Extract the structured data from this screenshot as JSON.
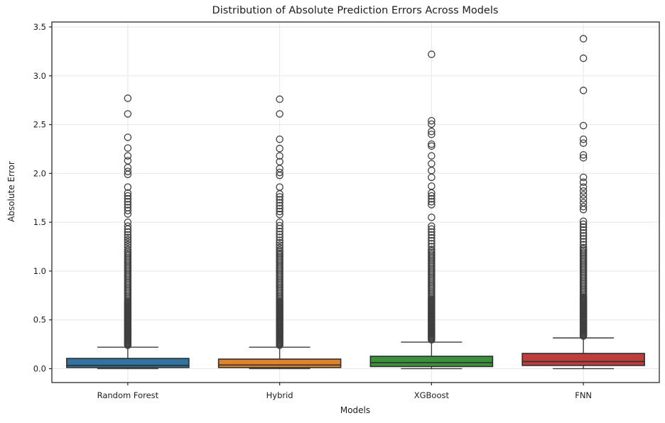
{
  "chart_data": {
    "type": "boxplot",
    "title": "Distribution of Absolute Prediction Errors Across Models",
    "xlabel": "Models",
    "ylabel": "Absolute Error",
    "categories": [
      "Random Forest",
      "Hybrid",
      "XGBoost",
      "FNN"
    ],
    "y_ticks": [
      0.0,
      0.5,
      1.0,
      1.5,
      2.0,
      2.5,
      3.0,
      3.5
    ],
    "y_tick_labels": [
      "0.0",
      "0.5",
      "1.0",
      "1.5",
      "2.0",
      "2.5",
      "3.0",
      "3.5"
    ],
    "ylim": [
      -0.142,
      3.551
    ],
    "grid": true,
    "legend": "none",
    "series": [
      {
        "name": "Random Forest",
        "color": "#3274a1",
        "q1": 0.012,
        "median": 0.034,
        "q3": 0.105,
        "whisker_low": 0.0,
        "whisker_high": 0.22,
        "outliers": [
          2.77,
          2.61,
          2.37,
          2.26,
          2.18,
          2.13,
          2.06,
          2.02,
          1.99,
          1.86,
          1.8,
          1.77,
          1.74,
          1.71,
          1.68,
          1.65,
          1.62,
          1.585,
          1.5,
          1.46,
          1.43,
          1.4,
          1.37,
          1.345,
          1.32,
          1.295,
          1.27,
          1.245,
          1.22
        ],
        "outlier_bands": [
          {
            "top": 1.2,
            "bottom": 0.7,
            "step": 0.016
          },
          {
            "top": 0.69,
            "bottom": 0.235,
            "step": 0.009
          }
        ]
      },
      {
        "name": "Hybrid",
        "color": "#e1812c",
        "q1": 0.012,
        "median": 0.038,
        "q3": 0.098,
        "whisker_low": 0.0,
        "whisker_high": 0.22,
        "outliers": [
          2.76,
          2.61,
          2.35,
          2.255,
          2.18,
          2.12,
          2.05,
          2.01,
          1.98,
          1.86,
          1.79,
          1.76,
          1.73,
          1.7,
          1.67,
          1.64,
          1.61,
          1.58,
          1.5,
          1.465,
          1.435,
          1.405,
          1.375,
          1.345,
          1.315,
          1.29,
          1.265,
          1.24,
          1.215
        ],
        "outlier_bands": [
          {
            "top": 1.2,
            "bottom": 0.7,
            "step": 0.016
          },
          {
            "top": 0.69,
            "bottom": 0.235,
            "step": 0.009
          }
        ]
      },
      {
        "name": "XGBoost",
        "color": "#3a923a",
        "q1": 0.022,
        "median": 0.062,
        "q3": 0.127,
        "whisker_low": 0.0,
        "whisker_high": 0.272,
        "outliers": [
          3.22,
          2.54,
          2.505,
          2.43,
          2.4,
          2.3,
          2.28,
          2.18,
          2.1,
          2.03,
          1.96,
          1.87,
          1.8,
          1.77,
          1.74,
          1.71,
          1.68,
          1.55,
          1.46,
          1.43,
          1.4,
          1.37,
          1.34,
          1.31,
          1.28,
          1.25
        ],
        "outlier_bands": [
          {
            "top": 1.22,
            "bottom": 0.72,
            "step": 0.016
          },
          {
            "top": 0.71,
            "bottom": 0.29,
            "step": 0.009
          }
        ]
      },
      {
        "name": "FNN",
        "color": "#c03d3e",
        "q1": 0.033,
        "median": 0.073,
        "q3": 0.156,
        "whisker_low": 0.0,
        "whisker_high": 0.315,
        "outliers": [
          3.38,
          3.18,
          2.85,
          2.49,
          2.35,
          2.31,
          2.19,
          2.16,
          1.96,
          1.91,
          1.86,
          1.82,
          1.78,
          1.74,
          1.7,
          1.66,
          1.63,
          1.51,
          1.48,
          1.45,
          1.42,
          1.39,
          1.36,
          1.33,
          1.3,
          1.27
        ],
        "outlier_bands": [
          {
            "top": 1.24,
            "bottom": 0.74,
            "step": 0.016
          },
          {
            "top": 0.73,
            "bottom": 0.33,
            "step": 0.009
          }
        ]
      }
    ]
  },
  "style": {
    "background": "#ffffff",
    "box_edge": "#2f2f2f",
    "median_line": "#2f2f2f",
    "whisker": "#3c3c3c",
    "flier_edge": "#3f3f3f",
    "grid": "#e7e7e7",
    "spine": "#2b2b2b",
    "tick": "#262626",
    "text": "#1c1c1c"
  }
}
